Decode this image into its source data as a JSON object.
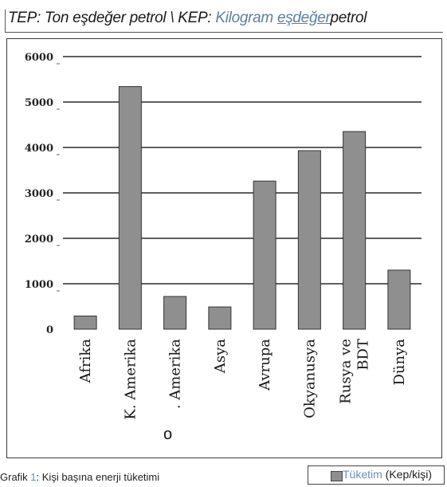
{
  "header": {
    "prefix": "TEP: Ton eşdeğer petrol \\ KEP: ",
    "term_kilogram": "Kilogram",
    "term_esdeger": "eşdeğer",
    "suffix": "petrol"
  },
  "caption": {
    "prefix": "Grafik ",
    "number": "1",
    "text": ": Kişi başına enerji tüketimi"
  },
  "stray_mark": "o",
  "chart_data": {
    "type": "bar",
    "categories": [
      "Afrika",
      "K. Amerika",
      "G. Amerika",
      "Asya",
      "Avrupa",
      "Okyanusya",
      "Rusya ve BDT",
      "Dünya"
    ],
    "category_lines": [
      [
        "Afrika"
      ],
      [
        "K. Amerika"
      ],
      [
        ". Amerika"
      ],
      [
        "Asya"
      ],
      [
        "Avrupa"
      ],
      [
        "Okyanusya"
      ],
      [
        "Rusya ve",
        "BDT"
      ],
      [
        "Dünya"
      ]
    ],
    "series": [
      {
        "name": "Tüketim (Kep/kişi)",
        "values": [
          290,
          5340,
          720,
          490,
          3260,
          3930,
          4350,
          1300
        ]
      }
    ],
    "legend": {
      "term": "Tüketim",
      "unit": " (Kep/kişi)",
      "position": "bottom-right"
    },
    "yticks": [
      "0",
      "1000",
      "2000",
      "3000",
      "4000",
      "5000",
      "6000"
    ],
    "ylim": [
      0,
      6000
    ],
    "grid": true,
    "colors": {
      "bar": "#8f8f8f",
      "bar_stroke": "#333333",
      "grid": "#2a2a2a",
      "axis_text": "#222222"
    }
  }
}
